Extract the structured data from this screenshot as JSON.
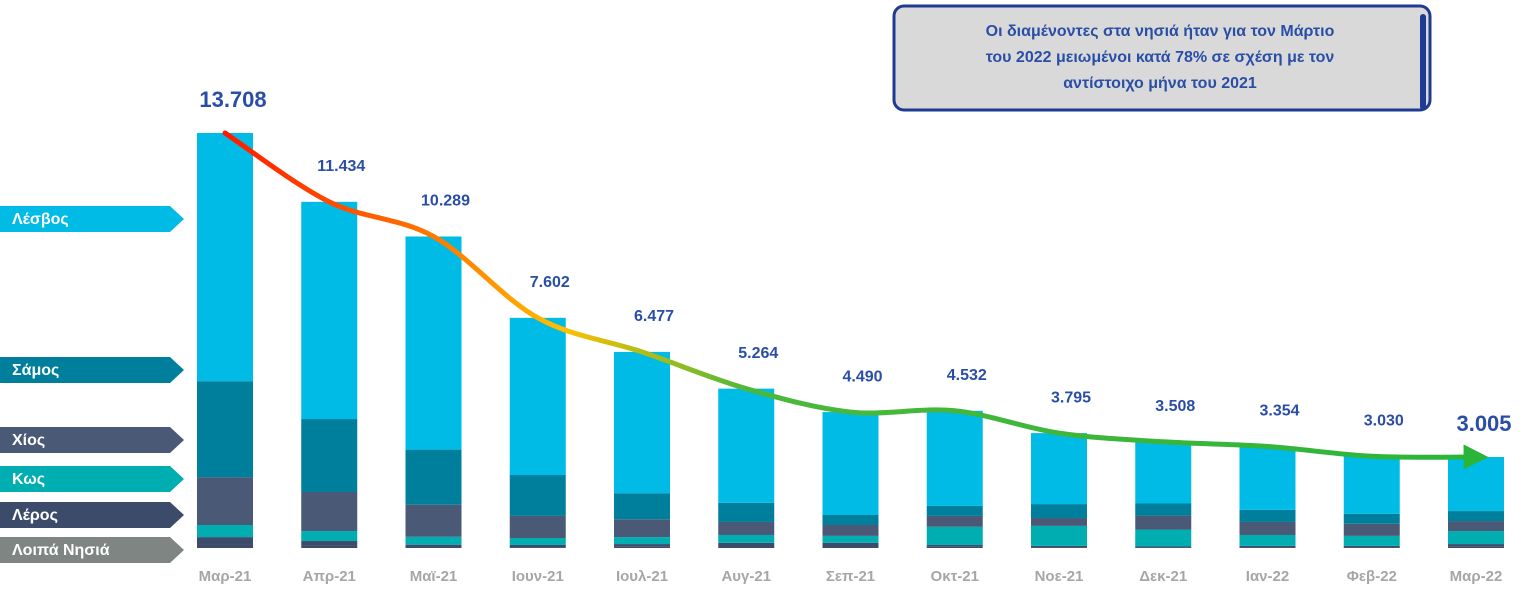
{
  "chart_data": {
    "type": "stacked_bar",
    "categories": [
      "Μαρ-21",
      "Απρ-21",
      "Μαϊ-21",
      "Ιουν-21",
      "Ιουλ-21",
      "Αυγ-21",
      "Σεπ-21",
      "Οκτ-21",
      "Νοε-21",
      "Δεκ-21",
      "Ιαν-22",
      "Φεβ-22",
      "Μαρ-22"
    ],
    "series": [
      {
        "name": "Λοιπά Νησιά",
        "color": "#3d4b69",
        "tag_color": "#7f8583",
        "values": [
          100,
          80,
          50,
          30,
          40,
          50,
          50,
          40,
          30,
          20,
          30,
          30,
          40
        ]
      },
      {
        "name": "Λέρος",
        "color": "#3d4b6b",
        "tag_color": "#3d4b6b",
        "values": [
          260,
          150,
          60,
          70,
          90,
          120,
          120,
          60,
          40,
          30,
          40,
          40,
          90
        ]
      },
      {
        "name": "Κως",
        "color": "#00aeb2",
        "tag_color": "#00aeb2",
        "values": [
          400,
          330,
          260,
          230,
          230,
          260,
          230,
          600,
          660,
          560,
          360,
          330,
          430
        ]
      },
      {
        "name": "Χίος",
        "color": "#4a5a76",
        "tag_color": "#4a5a76",
        "values": [
          1580,
          1290,
          1060,
          730,
          590,
          430,
          360,
          360,
          260,
          460,
          430,
          400,
          330
        ]
      },
      {
        "name": "Σάμος",
        "color": "#007f9c",
        "tag_color": "#007f9c",
        "values": [
          3170,
          2410,
          1820,
          1350,
          860,
          630,
          330,
          330,
          460,
          400,
          400,
          330,
          330
        ]
      },
      {
        "name": "Λέσβος",
        "color": "#00bbe6",
        "tag_color": "#00bbe6",
        "values": [
          8198,
          7174,
          7039,
          5192,
          4667,
          3774,
          3400,
          3142,
          2345,
          2038,
          2094,
          1900,
          1785
        ]
      }
    ],
    "totals": {
      "values": [
        13708,
        11434,
        10289,
        7602,
        6477,
        5264,
        4490,
        4532,
        3795,
        3508,
        3354,
        3030,
        3005
      ],
      "value_labels": [
        "13.708",
        "11.434",
        "10.289",
        "7.602",
        "6.477",
        "5.264",
        "4.490",
        "4.532",
        "3.795",
        "3.508",
        "3.354",
        "3.030",
        "3.005"
      ]
    },
    "ylim": [
      0,
      14500
    ],
    "annotation": [
      "Οι διαμένοντες στα νησιά ήταν για τον Μάρτιο",
      "του 2022 μειωμένοι κατά 78% σε σχέση με τον",
      "αντίστοιχο μήνα του 2021"
    ]
  }
}
